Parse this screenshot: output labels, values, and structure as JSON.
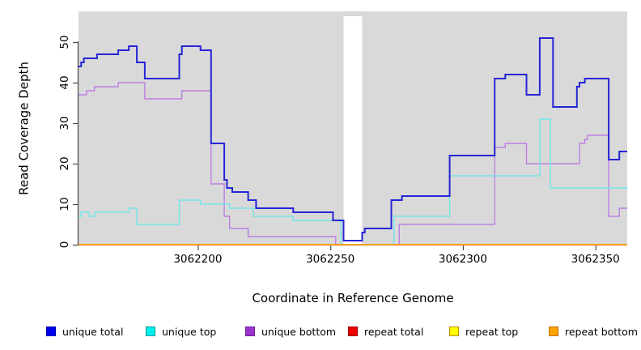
{
  "chart_data": {
    "type": "line",
    "subtype": "step",
    "title": "",
    "xlabel": "Coordinate in Reference Genome",
    "ylabel": "Read Coverage Depth",
    "xlim": [
      3062155,
      3062362
    ],
    "ylim": [
      0,
      57.6
    ],
    "x_ticks": [
      3062200,
      3062250,
      3062300,
      3062350
    ],
    "y_ticks": [
      0,
      10,
      20,
      30,
      40,
      50
    ],
    "grid": false,
    "legend_position": "bottom",
    "plot_background": "#d9d9d9",
    "page_background": "#ffffff",
    "axis_color": "#4a4a4a",
    "gap_region": {
      "start": 3062255,
      "end": 3062262,
      "color": "#ffffff"
    },
    "series": [
      {
        "name": "unique total",
        "line_color": "#2525d6",
        "line_width": 2,
        "swatch_fill": "#0000ee",
        "swatch_border": "#0000aa",
        "points": [
          [
            3062155,
            44
          ],
          [
            3062156,
            45
          ],
          [
            3062157,
            46
          ],
          [
            3062162,
            47
          ],
          [
            3062170,
            48
          ],
          [
            3062174,
            49
          ],
          [
            3062177,
            45
          ],
          [
            3062180,
            41
          ],
          [
            3062193,
            47
          ],
          [
            3062194,
            49
          ],
          [
            3062201,
            48
          ],
          [
            3062205,
            25
          ],
          [
            3062210,
            16
          ],
          [
            3062211,
            14
          ],
          [
            3062213,
            13
          ],
          [
            3062219,
            11
          ],
          [
            3062222,
            9
          ],
          [
            3062236,
            8
          ],
          [
            3062251,
            6
          ],
          [
            3062255,
            1
          ],
          [
            3062262,
            3
          ],
          [
            3062263,
            4
          ],
          [
            3062273,
            11
          ],
          [
            3062277,
            12
          ],
          [
            3062295,
            22
          ],
          [
            3062312,
            41
          ],
          [
            3062316,
            42
          ],
          [
            3062324,
            37
          ],
          [
            3062329,
            51
          ],
          [
            3062334,
            34
          ],
          [
            3062343,
            39
          ],
          [
            3062344,
            40
          ],
          [
            3062346,
            41
          ],
          [
            3062355,
            21
          ],
          [
            3062359,
            23
          ],
          [
            3062362,
            23
          ]
        ]
      },
      {
        "name": "unique top",
        "line_color": "#73e6ea",
        "line_width": 1.4,
        "swatch_fill": "#00eeee",
        "swatch_border": "#009999",
        "points": [
          [
            3062155,
            7
          ],
          [
            3062156,
            8
          ],
          [
            3062159,
            7
          ],
          [
            3062161,
            8
          ],
          [
            3062174,
            9
          ],
          [
            3062177,
            5
          ],
          [
            3062193,
            11
          ],
          [
            3062201,
            10
          ],
          [
            3062212,
            9
          ],
          [
            3062221,
            7
          ],
          [
            3062236,
            6
          ],
          [
            3062254,
            0
          ],
          [
            3062274,
            7
          ],
          [
            3062295,
            17
          ],
          [
            3062329,
            31
          ],
          [
            3062333,
            14
          ],
          [
            3062362,
            14
          ]
        ]
      },
      {
        "name": "unique bottom",
        "line_color": "#bd7fdf",
        "line_width": 1.4,
        "swatch_fill": "#9933cc",
        "swatch_border": "#6f1f99",
        "points": [
          [
            3062155,
            37
          ],
          [
            3062158,
            38
          ],
          [
            3062161,
            39
          ],
          [
            3062170,
            40
          ],
          [
            3062180,
            36
          ],
          [
            3062194,
            38
          ],
          [
            3062205,
            15
          ],
          [
            3062210,
            7
          ],
          [
            3062212,
            4
          ],
          [
            3062219,
            2
          ],
          [
            3062252,
            0
          ],
          [
            3062276,
            5
          ],
          [
            3062312,
            24
          ],
          [
            3062316,
            25
          ],
          [
            3062324,
            20
          ],
          [
            3062344,
            25
          ],
          [
            3062346,
            26
          ],
          [
            3062347,
            27
          ],
          [
            3062355,
            7
          ],
          [
            3062359,
            9
          ],
          [
            3062362,
            9
          ]
        ]
      },
      {
        "name": "repeat total",
        "line_color": "#dd0000",
        "line_width": 1.4,
        "swatch_fill": "#ee0000",
        "swatch_border": "#990000",
        "points": [
          [
            3062155,
            0
          ],
          [
            3062362,
            0
          ]
        ]
      },
      {
        "name": "repeat top",
        "line_color": "#eeee00",
        "line_width": 1.4,
        "swatch_fill": "#ffff00",
        "swatch_border": "#bb8800",
        "points": [
          [
            3062155,
            0
          ],
          [
            3062362,
            0
          ]
        ]
      },
      {
        "name": "repeat bottom",
        "line_color": "#ffa000",
        "line_width": 1.7,
        "swatch_fill": "#ffa500",
        "swatch_border": "#bb6f00",
        "points": [
          [
            3062155,
            0
          ],
          [
            3062362,
            0
          ]
        ]
      }
    ]
  },
  "legend_x_positions": [
    57,
    180,
    303,
    430,
    555,
    678
  ],
  "draw_order": [
    "repeat total",
    "repeat top",
    "unique bottom",
    "unique top",
    "repeat bottom",
    "unique total"
  ]
}
